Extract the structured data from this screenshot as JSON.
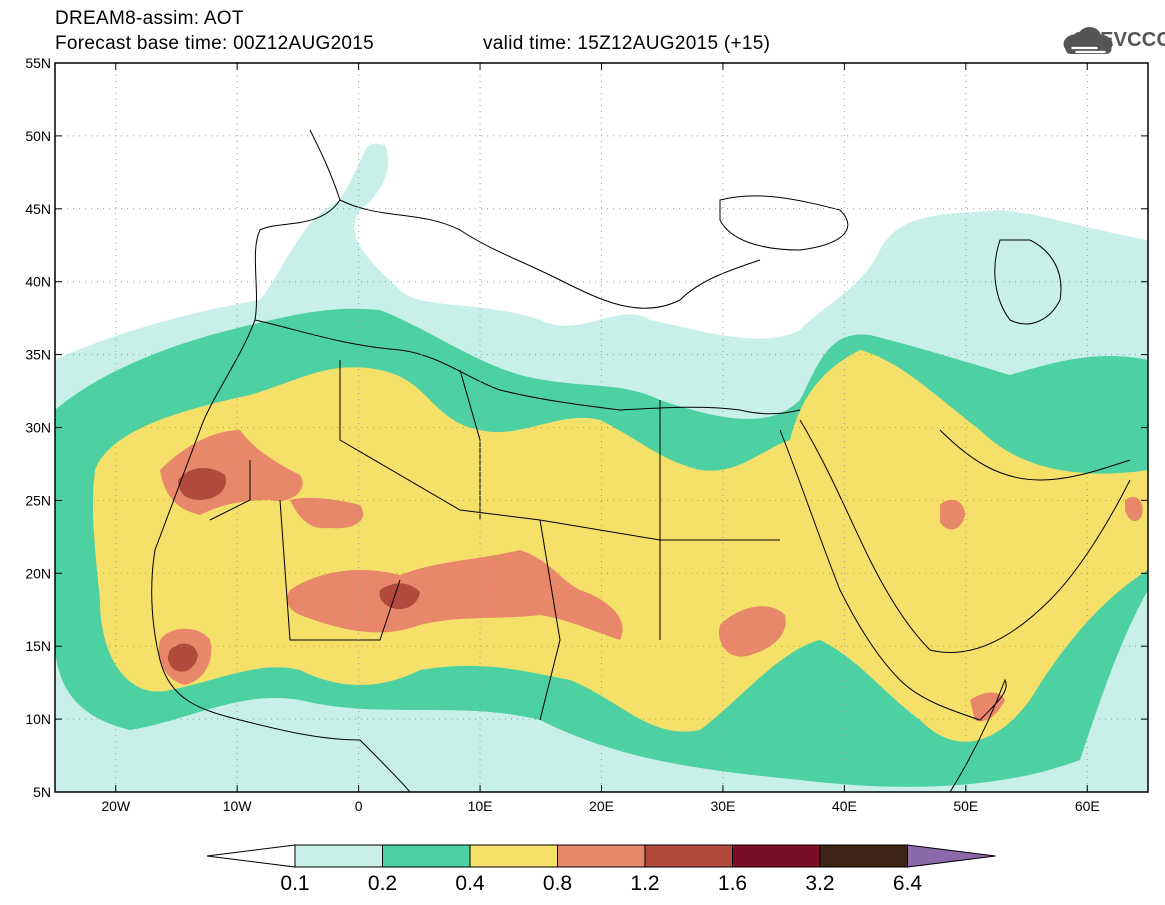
{
  "title": {
    "line1": "DREAM8-assim: AOT",
    "line2": "Forecast base time: 00Z12AUG2015",
    "valid": "valid time: 15Z12AUG2015 (+15)"
  },
  "logo": {
    "text": "SEEVCCC",
    "icon": "cloud-icon",
    "color": "#555555"
  },
  "axes": {
    "lon_labels": [
      "20W",
      "10W",
      "0",
      "10E",
      "20E",
      "30E",
      "40E",
      "50E",
      "60E"
    ],
    "lon_values": [
      -20,
      -10,
      0,
      10,
      20,
      30,
      40,
      50,
      60
    ],
    "lat_labels": [
      "55N",
      "50N",
      "45N",
      "40N",
      "35N",
      "30N",
      "25N",
      "20N",
      "15N",
      "10N",
      "5N"
    ],
    "lat_values": [
      55,
      50,
      45,
      40,
      35,
      30,
      25,
      20,
      15,
      10,
      5
    ],
    "lon_range": [
      -25,
      65
    ],
    "lat_range": [
      5,
      55
    ]
  },
  "colorbar": {
    "labels": [
      "0.1",
      "0.2",
      "0.4",
      "0.8",
      "1.2",
      "1.6",
      "3.2",
      "6.4"
    ],
    "colors": [
      "#ffffff",
      "#c8f0e8",
      "#4dd1a3",
      "#f5e06a",
      "#e8876a",
      "#b24a3c",
      "#7a0e26",
      "#3d2416",
      "#8a6aa8"
    ]
  },
  "levels": {
    "l1": "#c8f0e8",
    "l2": "#4dd1a3",
    "l3": "#f5e06a",
    "l4": "#e8876a",
    "l5": "#b24a3c",
    "l6": "#7a0e26"
  }
}
